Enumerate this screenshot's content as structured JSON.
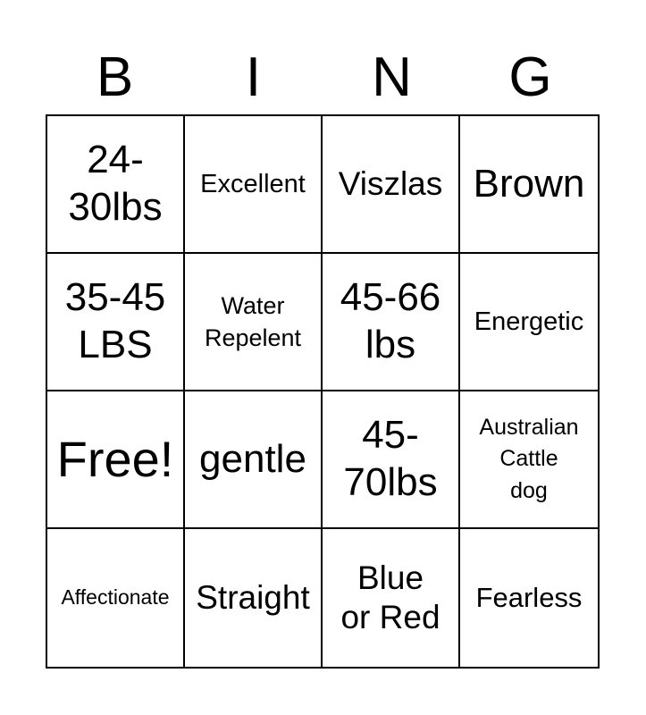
{
  "header": {
    "letters": [
      "B",
      "I",
      "N",
      "G"
    ]
  },
  "board": {
    "cells": [
      [
        "24-",
        "30lbs"
      ],
      [
        "Excellent"
      ],
      [
        "Viszlas"
      ],
      [
        "Brown"
      ],
      [
        "35-45",
        "LBS"
      ],
      [
        "Water",
        "Repelent"
      ],
      [
        "45-66",
        "lbs"
      ],
      [
        "Energetic"
      ],
      [
        "Free!"
      ],
      [
        "gentle"
      ],
      [
        "45-",
        "70lbs"
      ],
      [
        "Australian",
        "Cattle",
        "dog"
      ],
      [
        "Affectionate"
      ],
      [
        "Straight"
      ],
      [
        "Blue",
        "or Red"
      ],
      [
        "Fearless"
      ]
    ]
  }
}
